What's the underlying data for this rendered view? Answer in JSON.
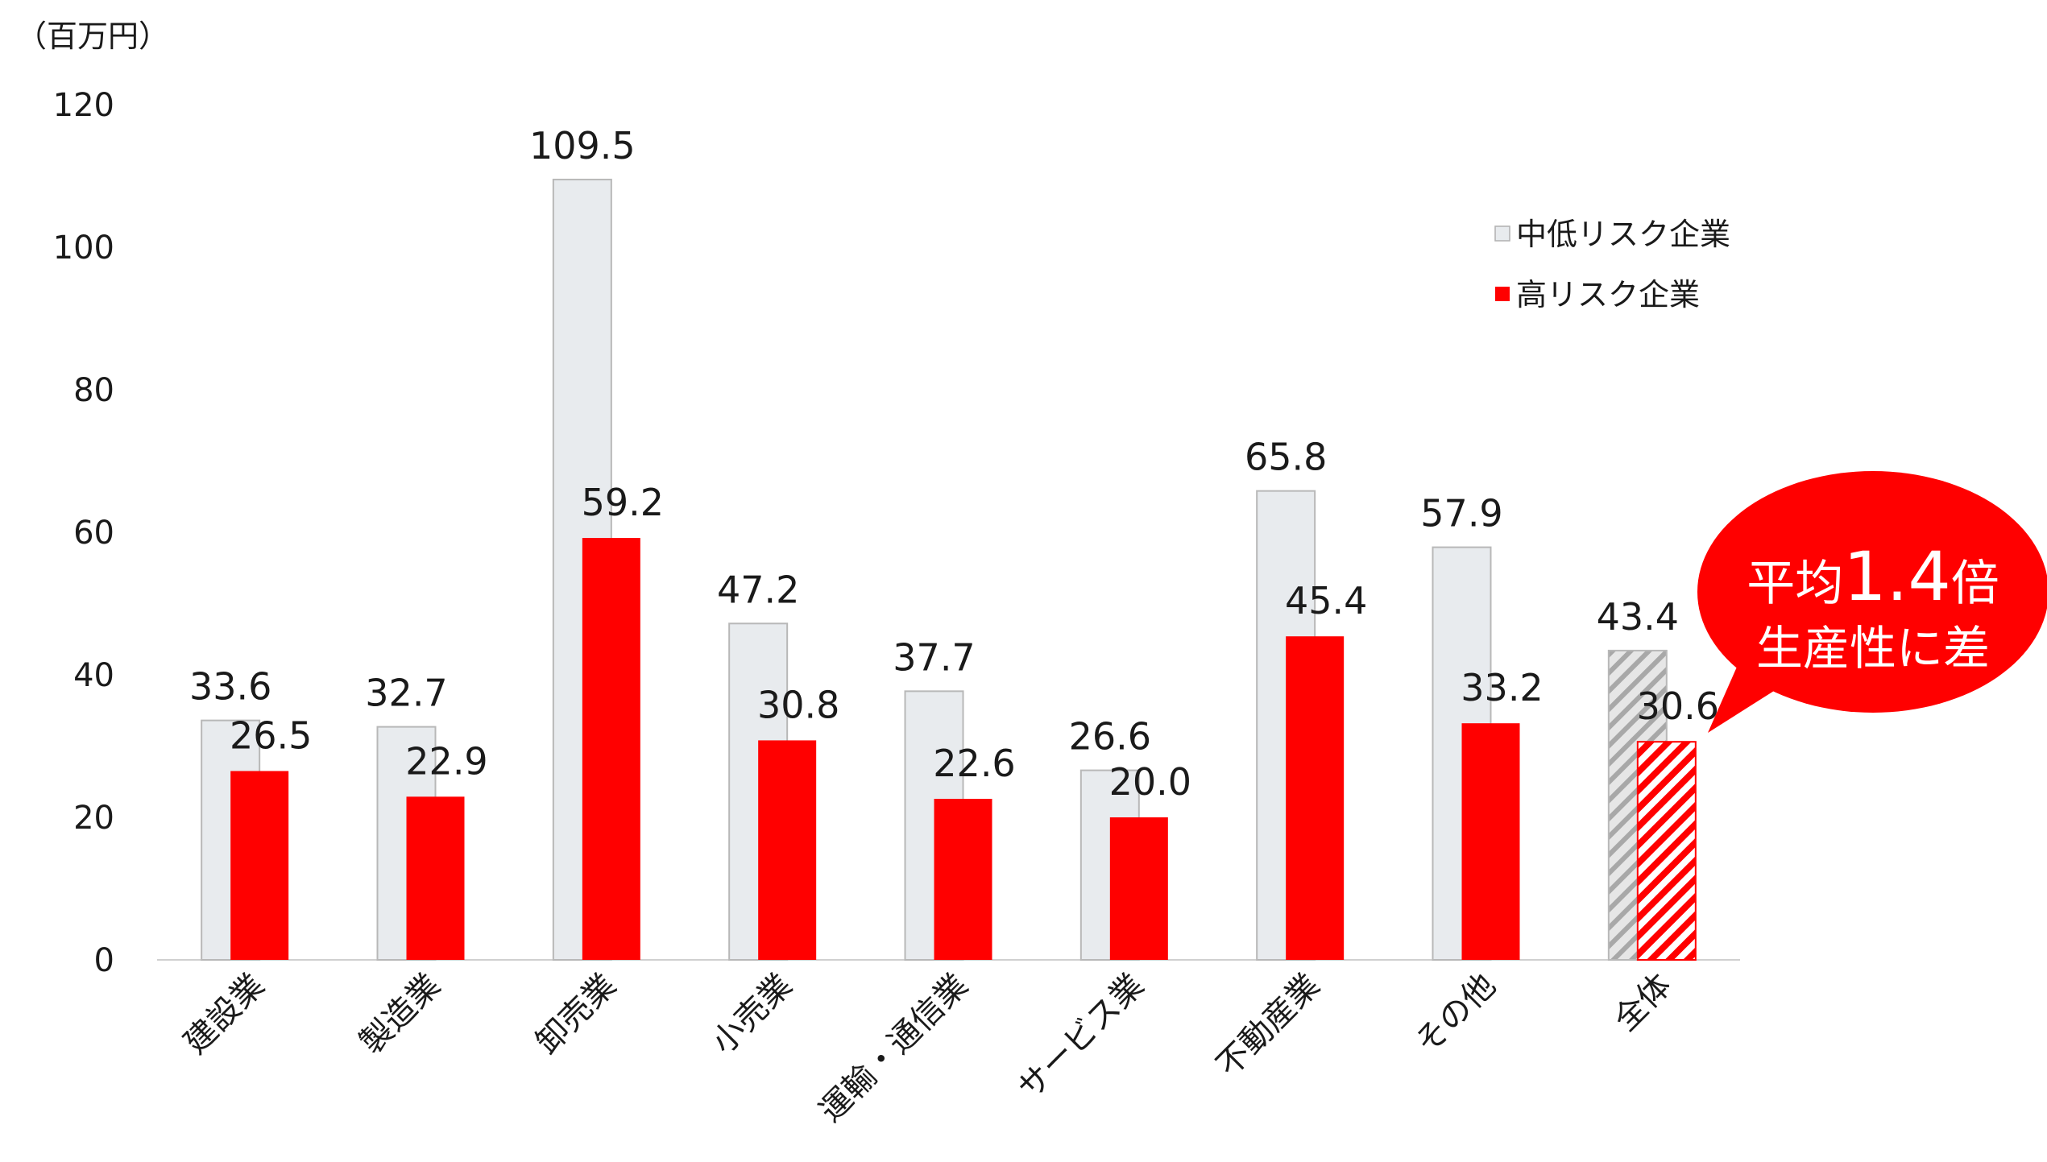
{
  "chart_data": {
    "type": "bar",
    "unit_label": "（百万円）",
    "ylim": [
      0,
      120
    ],
    "yticks": [
      0,
      20,
      40,
      60,
      80,
      100,
      120
    ],
    "categories": [
      "建設業",
      "製造業",
      "卸売業",
      "小売業",
      "運輸・通信業",
      "サービス業",
      "不動産業",
      "その他",
      "全体"
    ],
    "series": [
      {
        "name": "中低リスク企業",
        "color": "#e8ebee",
        "values": [
          33.6,
          32.7,
          109.5,
          47.2,
          37.7,
          26.6,
          65.8,
          57.9,
          43.4
        ]
      },
      {
        "name": "高リスク企業",
        "color": "#ff0000",
        "values": [
          26.5,
          22.9,
          59.2,
          30.8,
          22.6,
          20.0,
          45.4,
          33.2,
          30.6
        ]
      }
    ],
    "value_labels": [
      [
        "33.6",
        "32.7",
        "109.5",
        "47.2",
        "37.7",
        "26.6",
        "65.8",
        "57.9",
        "43.4"
      ],
      [
        "26.5",
        "22.9",
        "59.2",
        "30.8",
        "22.6",
        "20.0",
        "45.4",
        "33.2",
        "30.6"
      ]
    ],
    "hatched_category": "全体",
    "legend_position": "top-right",
    "grid": false
  },
  "callout": {
    "prefix": "平均",
    "number": "1.4",
    "suffix": "倍",
    "line2": "生産性に差",
    "color": "#ff0000"
  }
}
